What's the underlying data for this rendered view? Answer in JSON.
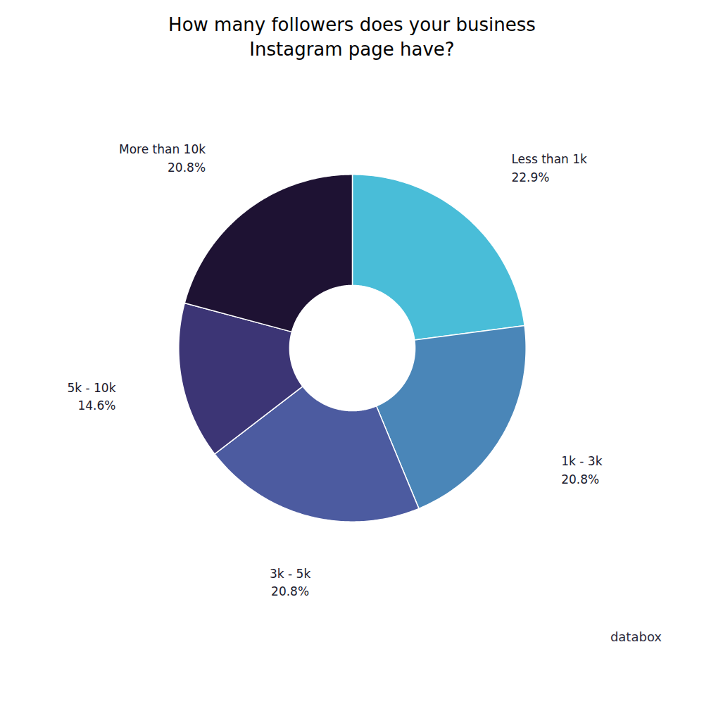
{
  "chart_data": {
    "type": "donut",
    "title": "How many followers does your business\nInstagram page have?",
    "categories": [
      "Less than 1k",
      "1k - 3k",
      "3k - 5k",
      "5k - 10k",
      "More than 10k"
    ],
    "values": [
      22.9,
      20.8,
      20.8,
      14.6,
      20.8
    ],
    "value_labels": [
      "22.9%",
      "20.8%",
      "20.8%",
      "14.6%",
      "20.8%"
    ],
    "colors": [
      "#49BDD8",
      "#4A86B8",
      "#4C5BA0",
      "#3C3575",
      "#1E1233"
    ],
    "data_labels": true,
    "tick_labels": false,
    "annotations": [
      "databox"
    ]
  }
}
